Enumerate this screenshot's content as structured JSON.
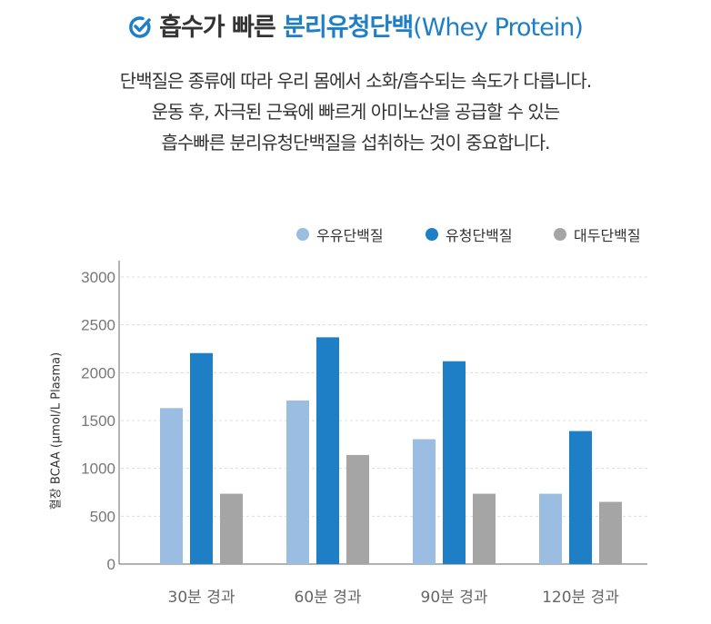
{
  "header": {
    "check_icon": "check-circle-icon",
    "title_dark": "흡수가 빠른 ",
    "title_blue": "분리유청단백",
    "title_en": "(Whey Protein)"
  },
  "description": [
    "단백질은 종류에 따라 우리 몸에서 소화/흡수되는 속도가 다릅니다.",
    "운동 후, 자극된 근육에 빠르게 아미노산을 공급할 수 있는",
    "흡수빠른 분리유청단백질을 섭취하는 것이 중요합니다."
  ],
  "chart_data": {
    "type": "bar",
    "ylabel": "혈장 BCAA (μmol/L Plasma)",
    "xlabel": "",
    "categories": [
      "30분 경과",
      "60분 경과",
      "90분 경과",
      "120분 경과"
    ],
    "ylim": [
      0,
      3000
    ],
    "yticks": [
      "0",
      "500",
      "1000",
      "1500",
      "2000",
      "2500",
      "3000"
    ],
    "grid": true,
    "legend_position": "top-right",
    "series": [
      {
        "name": "우유단백질",
        "color": "#9bbde2",
        "values": [
          1630,
          1710,
          1305,
          735
        ]
      },
      {
        "name": "유청단백질",
        "color": "#1e7fc6",
        "values": [
          2205,
          2370,
          2120,
          1390
        ]
      },
      {
        "name": "대두단백질",
        "color": "#a5a5a5",
        "values": [
          735,
          1140,
          735,
          650
        ]
      }
    ]
  }
}
